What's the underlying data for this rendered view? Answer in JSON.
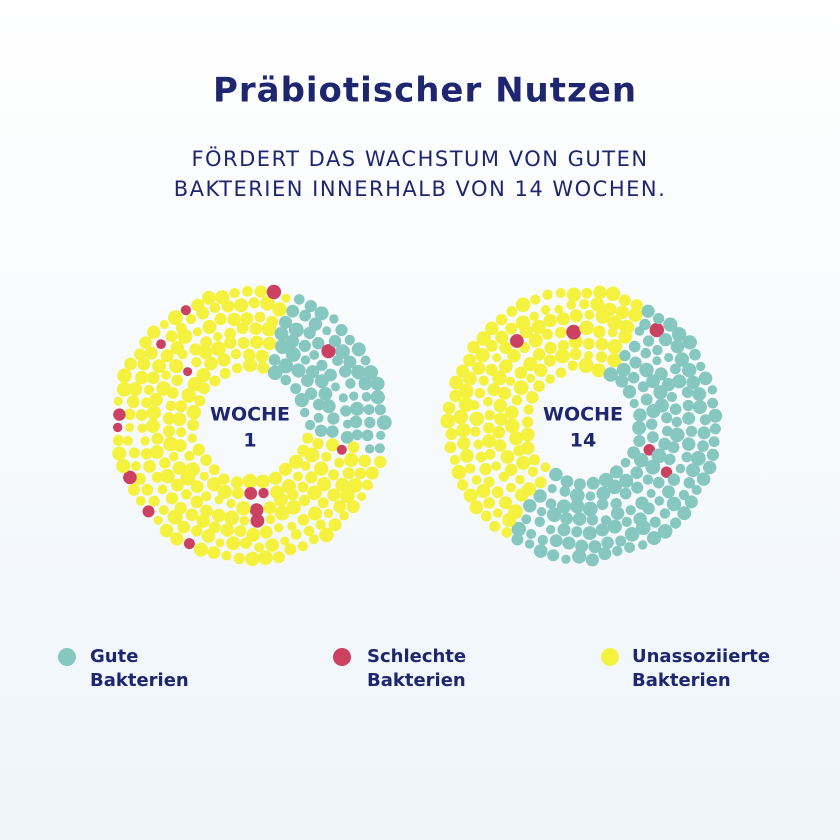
{
  "header": {
    "title": "Präbiotischer Nutzen",
    "subtitle": [
      "FÖRDERT DAS WACHSTUM VON GUTEN",
      "BAKTERIEN INNERHALB VON 14 WOCHEN."
    ]
  },
  "diagrams": [
    {
      "label": [
        "WOCHE",
        "1"
      ]
    },
    {
      "label": [
        "WOCHE",
        "14"
      ]
    }
  ],
  "legend": [
    {
      "label": [
        "Gute",
        "Bakterien"
      ]
    },
    {
      "label": [
        "Schlechte",
        "Bakterien"
      ]
    },
    {
      "label": [
        "Unassoziierte",
        "Bakterien"
      ]
    }
  ]
}
